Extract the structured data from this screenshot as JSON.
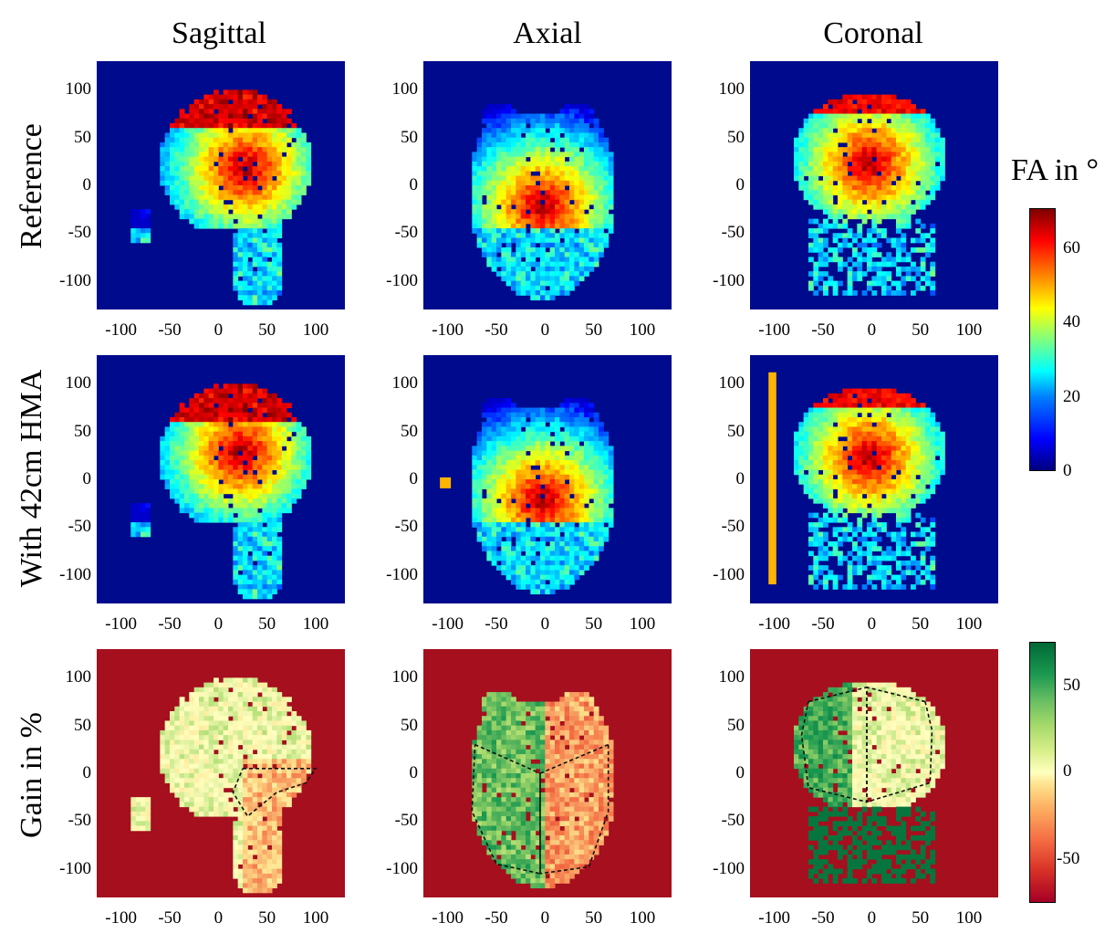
{
  "columns": [
    "Sagittal",
    "Axial",
    "Coronal"
  ],
  "rows": [
    "Reference",
    "With 42cm HMA",
    "Gain in %"
  ],
  "chart_data": {
    "type": "heatmap",
    "x_ticks": [
      "-100",
      "-50",
      "0",
      "50",
      "100"
    ],
    "y_ticks": [
      "100",
      "50",
      "0",
      "-50",
      "-100"
    ],
    "xlim": [
      -125,
      130
    ],
    "ylim": [
      -130,
      130
    ],
    "colorbars": [
      {
        "title": "FA in °",
        "colormap": "jet",
        "ticks": [
          "60",
          "40",
          "20",
          "0"
        ],
        "range": [
          0,
          70
        ]
      },
      {
        "title": "",
        "colormap": "RdYlGn",
        "ticks": [
          "50",
          "0",
          "-50"
        ],
        "range": [
          -75,
          75
        ]
      }
    ],
    "background_colors": {
      "fa": "#000a8c",
      "gain": "#a50f1e"
    },
    "annotations": [
      "dashed ROI outlines on gain maps",
      "orange bar artifact in HMA coronal and axial"
    ]
  }
}
